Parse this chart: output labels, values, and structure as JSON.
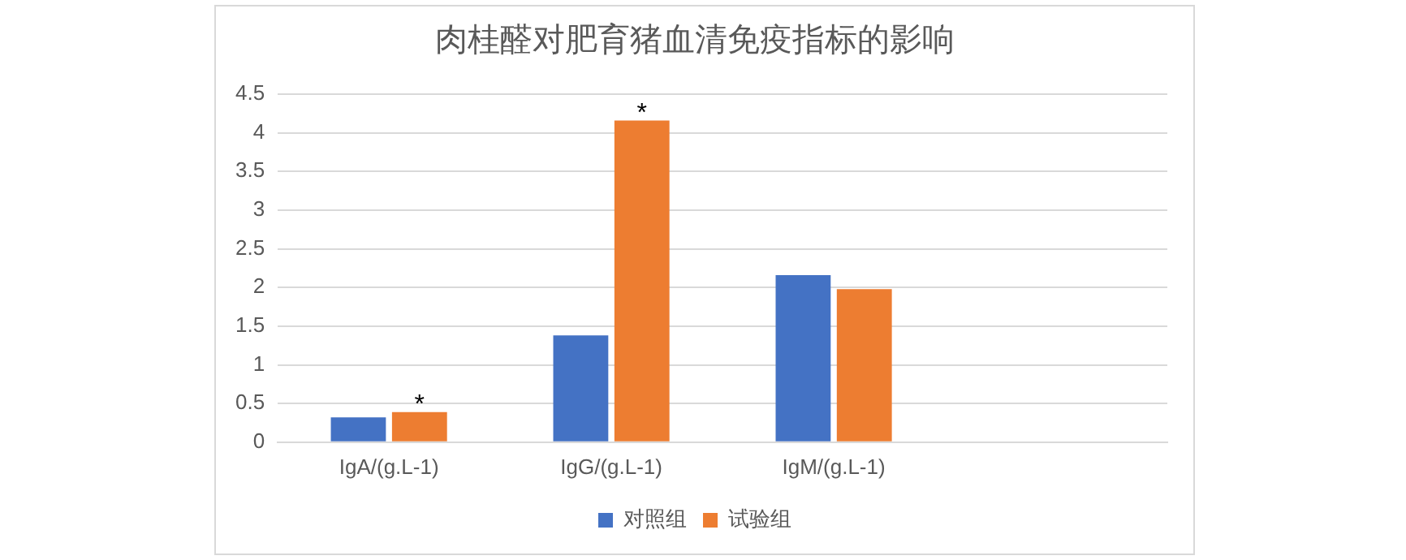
{
  "chart_data": {
    "type": "bar",
    "title": "肉桂醛对肥育猪血清免疫指标的影响",
    "categories": [
      "IgA/(g.L-1)",
      "IgG/(g.L-1)",
      "IgM/(g.L-1)",
      null
    ],
    "series": [
      {
        "name": "对照组",
        "color": "#4472c4",
        "values": [
          0.32,
          1.38,
          2.16,
          null
        ]
      },
      {
        "name": "试验组",
        "color": "#ed7d31",
        "values": [
          0.39,
          4.16,
          1.98,
          null
        ]
      }
    ],
    "ylim": [
      0,
      4.5
    ],
    "yticks": [
      0,
      0.5,
      1,
      1.5,
      2,
      2.5,
      3,
      3.5,
      4,
      4.5
    ],
    "grid": "y",
    "legend": "bottom",
    "annotations": [
      {
        "text": "*",
        "x": "IgA/(g.L-1)",
        "y": 0.39
      },
      {
        "text": "*",
        "x": "IgG/(g.L-1)",
        "y": 4.16
      }
    ]
  }
}
